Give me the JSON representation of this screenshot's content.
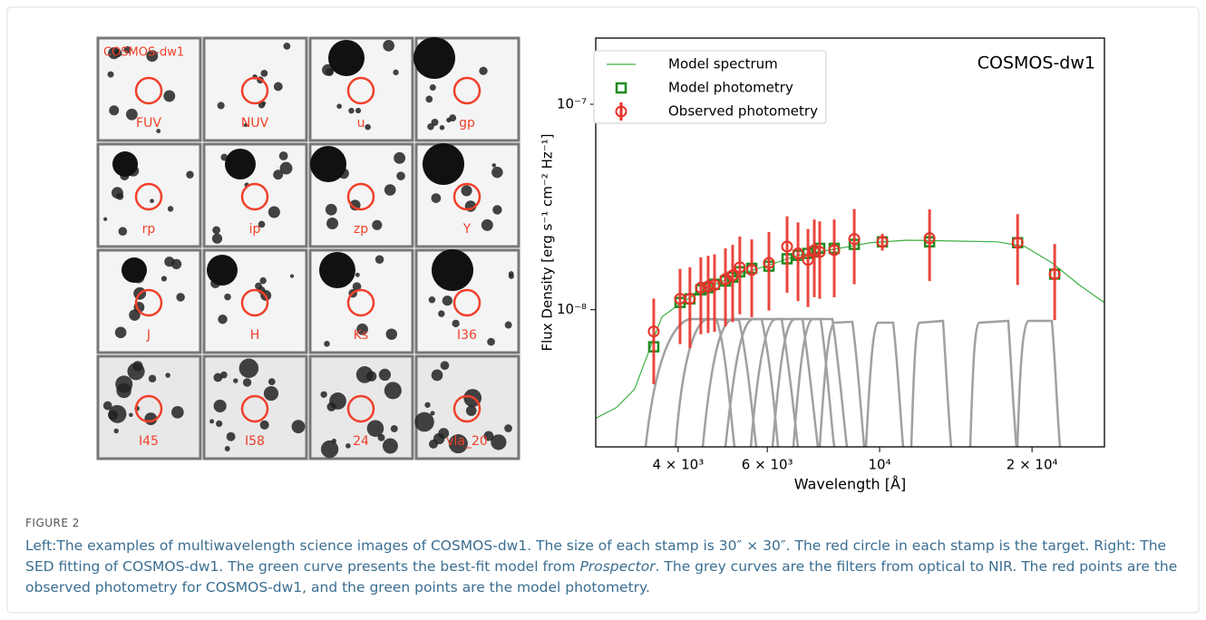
{
  "stamps": {
    "title": "COSMOS-dw1",
    "labels": [
      "FUV",
      "NUV",
      "u",
      "gp",
      "rp",
      "ip",
      "zp",
      "Y",
      "J",
      "H",
      "Ks",
      "I36",
      "I45",
      "I58",
      "24",
      "vla_20"
    ]
  },
  "chart_data": {
    "type": "scatter",
    "annotation": "COSMOS-dw1",
    "xlabel": "Wavelength [Å]",
    "ylabel": "Flux Density [erg s⁻¹ cm⁻² Hz⁻¹]",
    "xscale": "log",
    "yscale": "log",
    "legend": "upper left",
    "xlim": [
      2750,
      27800
    ],
    "ylim": [
      2.15e-09,
      2.1e-07
    ],
    "xticks": [
      {
        "value": 4000,
        "label": "4 × 10³"
      },
      {
        "value": 6000,
        "label": "6 × 10³"
      },
      {
        "value": 10000,
        "label": "10⁴"
      },
      {
        "value": 20000,
        "label": "2 × 10⁴"
      }
    ],
    "yticks": [
      {
        "value": 1e-08,
        "label": "10⁻⁸"
      },
      {
        "value": 1e-07,
        "label": "10⁻⁷"
      }
    ],
    "series": [
      {
        "name": "Model spectrum",
        "color": "#3cb043",
        "type": "line",
        "x": [
          2748,
          3020,
          3280,
          3490,
          3715,
          4035,
          4565,
          5165,
          6095,
          6900,
          8135,
          9595,
          11320,
          13910,
          17100,
          19360,
          21900,
          24800,
          27820
        ],
        "values": [
          2.96e-09,
          3.34e-09,
          4.1e-09,
          6.14e-09,
          9.22e-09,
          1.07e-08,
          1.28e-08,
          1.46e-08,
          1.66e-08,
          1.84e-08,
          1.97e-08,
          2.12e-08,
          2.18e-08,
          2.16e-08,
          2.14e-08,
          2.03e-08,
          1.69e-08,
          1.32e-08,
          1.08e-08
        ]
      },
      {
        "name": "Model photometry",
        "color": "#1e8c1e",
        "type": "square",
        "x": [
          3580,
          4035,
          4220,
          4435,
          4585,
          4720,
          4960,
          5125,
          5295,
          5590,
          6045,
          6565,
          6900,
          7220,
          7430,
          7615,
          8135,
          8910,
          10125,
          12550,
          18730,
          22170
        ],
        "values": [
          6.6e-09,
          1.085e-08,
          1.13e-08,
          1.25e-08,
          1.28e-08,
          1.33e-08,
          1.38e-08,
          1.44e-08,
          1.53e-08,
          1.59e-08,
          1.63e-08,
          1.77e-08,
          1.84e-08,
          1.88e-08,
          1.91e-08,
          1.99e-08,
          1.99e-08,
          2.08e-08,
          2.14e-08,
          2.14e-08,
          2.12e-08,
          1.49e-08
        ]
      },
      {
        "name": "Observed photometry",
        "color": "#e8322a",
        "type": "errorbar",
        "x": [
          3580,
          4035,
          4220,
          4435,
          4585,
          4720,
          4960,
          5125,
          5295,
          5590,
          6045,
          6565,
          6900,
          7220,
          7430,
          7615,
          8135,
          8910,
          10125,
          12550,
          18730,
          22170
        ],
        "values": [
          7.84e-09,
          1.13e-08,
          1.13e-08,
          1.28e-08,
          1.3e-08,
          1.32e-08,
          1.41e-08,
          1.47e-08,
          1.61e-08,
          1.56e-08,
          1.69e-08,
          2.03e-08,
          1.88e-08,
          1.75e-08,
          1.95e-08,
          1.91e-08,
          1.95e-08,
          2.21e-08,
          2.14e-08,
          2.23e-08,
          2.12e-08,
          1.49e-08
        ],
        "errors": [
          3.5e-09,
          4.5e-09,
          4.8e-09,
          5.2e-09,
          5.3e-09,
          5.4e-09,
          5.8e-09,
          6e-09,
          6.6e-09,
          6.4e-09,
          7e-09,
          8.2e-09,
          7.8e-09,
          7.2e-09,
          8e-09,
          7.8e-09,
          8e-09,
          8.8e-09,
          2e-09,
          8.5e-09,
          8e-09,
          6e-09
        ]
      }
    ]
  },
  "caption": {
    "label": "FIGURE 2",
    "parts": [
      "Left:The examples of multiwavelength science images of COSMOS-dw1. The size of each stamp is 30″ × 30″. The red circle in each stamp is the target. Right: The SED fitting of COSMOS-dw1. The green curve presents the best-fit model from ",
      "Prospector",
      ". The grey curves are the filters from optical to NIR. The red points are the observed photometry for COSMOS-dw1, and the green points are the model photometry."
    ]
  }
}
